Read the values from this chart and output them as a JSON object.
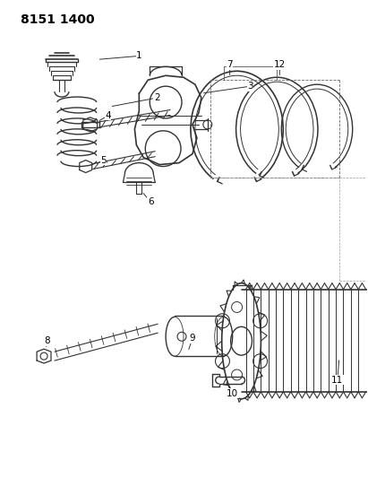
{
  "title": "8151 1400",
  "background_color": "#ffffff",
  "line_color": "#333333",
  "label_color": "#000000",
  "fig_w": 4.11,
  "fig_h": 5.33,
  "dpi": 100
}
